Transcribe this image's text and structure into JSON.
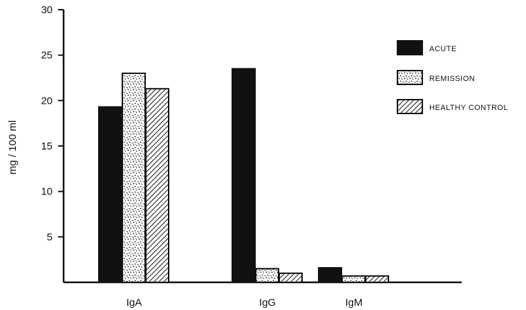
{
  "chart_data": {
    "type": "bar",
    "categories": [
      "IgA",
      "IgG",
      "IgM"
    ],
    "series": [
      {
        "name": "ACUTE",
        "values": [
          19.3,
          23.5,
          1.6
        ],
        "pattern": "solid"
      },
      {
        "name": "REMISSION",
        "values": [
          23.0,
          1.5,
          0.7
        ],
        "pattern": "stipple"
      },
      {
        "name": "HEALTHY CONTROL",
        "values": [
          21.3,
          1.0,
          0.7
        ],
        "pattern": "hatch"
      }
    ],
    "ylabel": "mg / 100 ml",
    "xlabel": "",
    "title": "",
    "ylim": [
      0,
      30
    ],
    "yticks": [
      5,
      10,
      15,
      20,
      25,
      30
    ],
    "ytick_labels": [
      "5",
      "10",
      "15",
      "20",
      "25",
      "30"
    ],
    "grid": false,
    "legend_position": "right",
    "colors": {
      "ink": "#111111",
      "background": "#ffffff"
    }
  }
}
